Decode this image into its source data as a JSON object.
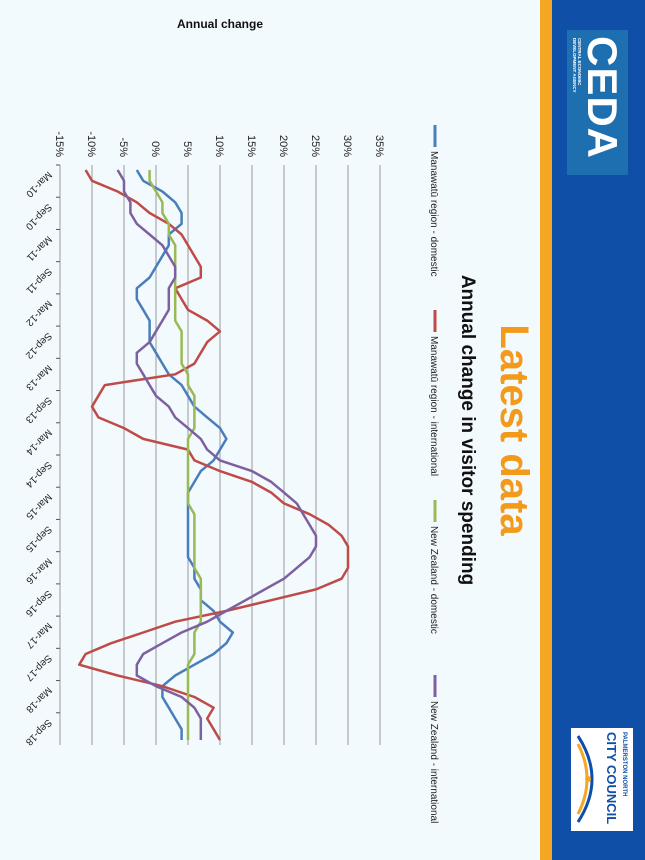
{
  "slide": {
    "title": "Latest data"
  },
  "chart_data": {
    "type": "line",
    "title": "Annual change in visitor spending",
    "ylabel": "Annual change",
    "xlabel": "",
    "ylim": [
      -15,
      35
    ],
    "yticks": [
      "-15%",
      "-10%",
      "-5%",
      "0%",
      "5%",
      "10%",
      "15%",
      "20%",
      "25%",
      "30%",
      "35%"
    ],
    "x_tick_labels": [
      "Mar-10",
      "Sep-10",
      "Mar-11",
      "Sep-11",
      "Mar-12",
      "Sep-12",
      "Mar-13",
      "Sep-13",
      "Mar-14",
      "Sep-14",
      "Mar-15",
      "Sep-15",
      "Mar-16",
      "Sep-16",
      "Mar-17",
      "Sep-17",
      "Mar-18",
      "Sep-18"
    ],
    "grid": true,
    "legend_position": "top",
    "series": [
      {
        "name": "Manawatū region - domestic",
        "color": "#4a7ebb",
        "values": [
          -3,
          -2,
          1,
          3,
          4,
          4,
          2,
          2,
          1,
          0,
          -1,
          -3,
          -3,
          -2,
          -1,
          -1,
          -1,
          0,
          1,
          2,
          4,
          5,
          6,
          8,
          10,
          11,
          10,
          9,
          7,
          6,
          5,
          5,
          5,
          5,
          5,
          5,
          5,
          6,
          6,
          7,
          7,
          9,
          10,
          12,
          11,
          9,
          6,
          3,
          1,
          1,
          2,
          3,
          4,
          4
        ]
      },
      {
        "name": "Manawatū region - international",
        "color": "#be4b48",
        "values": [
          -11,
          -10,
          -6,
          -3,
          -1,
          2,
          4,
          5,
          6,
          7,
          7,
          3,
          4,
          5,
          8,
          10,
          8,
          7,
          6,
          3,
          -8,
          -9,
          -10,
          -9,
          -5,
          -2,
          5,
          6,
          10,
          15,
          18,
          20,
          24,
          27,
          29,
          30,
          30,
          30,
          29,
          25,
          18,
          11,
          3,
          -2,
          -7,
          -11,
          -12,
          -6,
          1,
          6,
          9,
          8,
          9,
          10
        ]
      },
      {
        "name": "New Zealand - domestic",
        "color": "#98b954",
        "values": [
          -1,
          -1,
          0,
          1,
          1,
          2,
          2,
          3,
          3,
          3,
          3,
          3,
          3,
          3,
          3,
          4,
          4,
          4,
          4,
          5,
          5,
          6,
          6,
          6,
          6,
          5,
          5,
          5,
          5,
          5,
          5,
          5,
          6,
          6,
          6,
          6,
          6,
          6,
          7,
          7,
          7,
          7,
          7,
          6,
          6,
          6,
          5,
          5,
          5,
          5,
          5,
          5,
          5,
          5
        ]
      },
      {
        "name": "New Zealand - international",
        "color": "#7d60a0",
        "values": [
          -6,
          -5,
          -5,
          -4,
          -4,
          -3,
          -1,
          1,
          2,
          3,
          3,
          2,
          2,
          2,
          1,
          0,
          -1,
          -3,
          -3,
          -2,
          -1,
          0,
          2,
          3,
          5,
          7,
          8,
          10,
          15,
          18,
          20,
          22,
          23,
          24,
          25,
          25,
          24,
          22,
          20,
          17,
          14,
          11,
          8,
          4,
          1,
          -2,
          -3,
          -3,
          0,
          4,
          6,
          7,
          7,
          7
        ]
      }
    ]
  }
}
